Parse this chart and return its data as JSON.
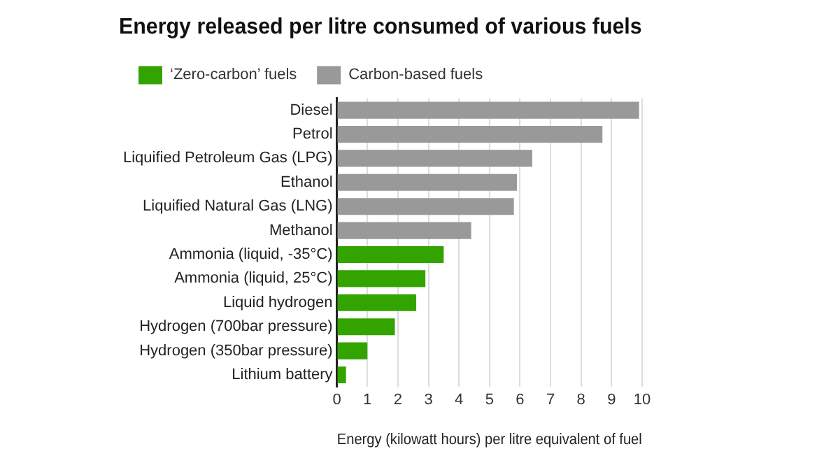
{
  "chart_data": {
    "type": "bar",
    "orientation": "horizontal",
    "title": "Energy released per litre consumed of various fuels",
    "xlabel": "Energy (kilowatt hours) per litre equivalent of fuel",
    "categories": [
      "Diesel",
      "Petrol",
      "Liquified Petroleum Gas (LPG)",
      "Ethanol",
      "Liquified Natural Gas (LNG)",
      "Methanol",
      "Ammonia (liquid, -35°C)",
      "Ammonia (liquid, 25°C)",
      "Liquid hydrogen",
      "Hydrogen (700bar pressure)",
      "Hydrogen (350bar pressure)",
      "Lithium battery"
    ],
    "series": [
      {
        "name": "‘Zero-carbon’ fuels",
        "color": "#33a300",
        "values": [
          null,
          null,
          null,
          null,
          null,
          null,
          3.5,
          2.9,
          2.6,
          1.9,
          1.0,
          0.3
        ]
      },
      {
        "name": "Carbon-based fuels",
        "color": "#999999",
        "values": [
          9.9,
          8.7,
          6.4,
          5.9,
          5.8,
          4.4,
          null,
          null,
          null,
          null,
          null,
          null
        ]
      }
    ],
    "xlim": [
      0,
      10
    ],
    "xticks": [
      0,
      1,
      2,
      3,
      4,
      5,
      6,
      7,
      8,
      9,
      10
    ],
    "grid": "x",
    "legend": "top left"
  }
}
